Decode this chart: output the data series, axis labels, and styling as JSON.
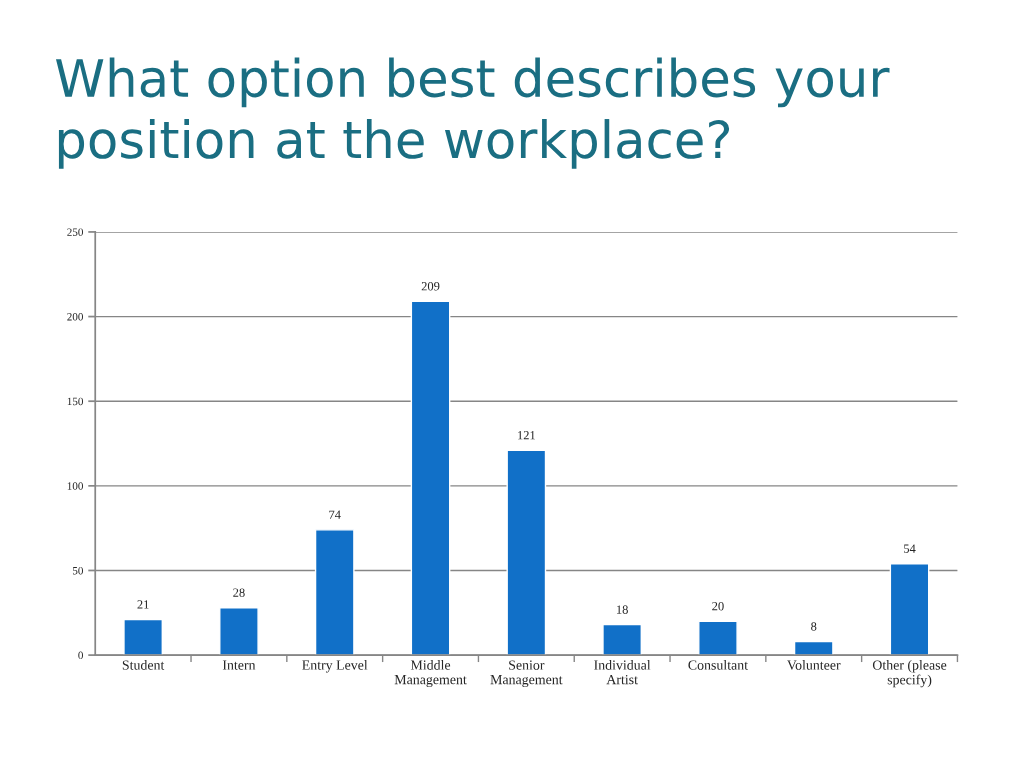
{
  "chart_data": {
    "type": "bar",
    "title": "What option best describes your position at the workplace?",
    "categories": [
      "Student",
      "Intern",
      "Entry Level",
      "Middle\nManagement",
      "Senior\nManagement",
      "Individual\nArtist",
      "Consultant",
      "Volunteer",
      "Other (please\nspecify)"
    ],
    "values": [
      21,
      28,
      74,
      209,
      121,
      18,
      20,
      8,
      54
    ],
    "color": "#1170c8",
    "ylim": [
      0,
      250
    ],
    "yticks": [
      0,
      50,
      100,
      150,
      200,
      250
    ],
    "grid": "y",
    "data_labels": true
  }
}
